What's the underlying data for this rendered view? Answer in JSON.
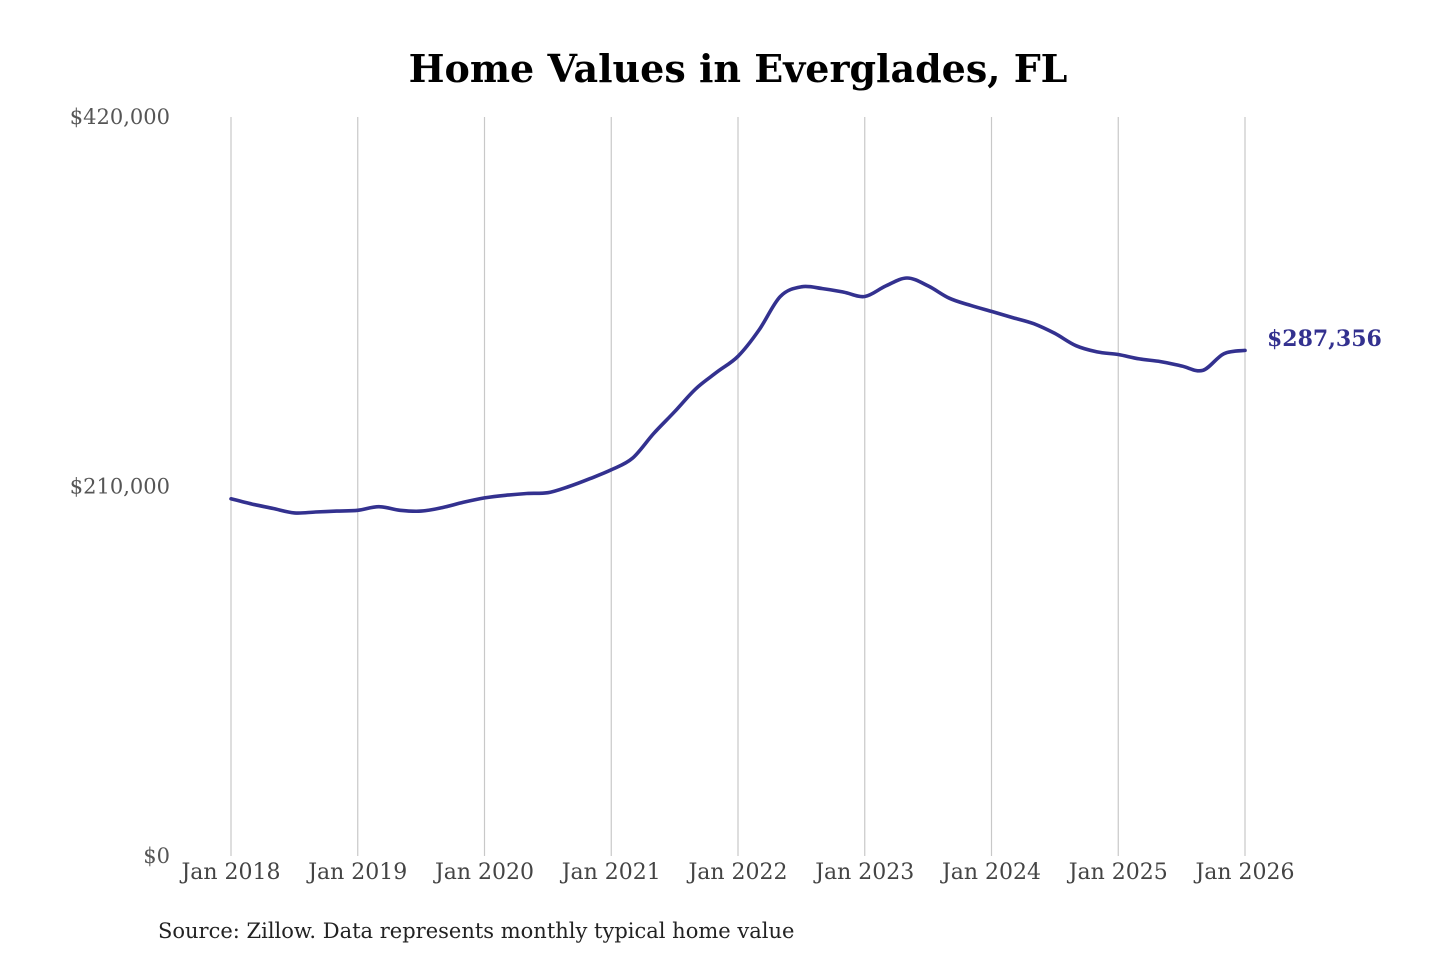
{
  "chart_data": {
    "type": "line",
    "title": "Home Values in Everglades, FL",
    "source_note": "Source: Zillow. Data represents monthly typical home value",
    "xlabel": "",
    "ylabel": "",
    "ylim": [
      0,
      420000
    ],
    "yticks": [
      0,
      210000,
      420000
    ],
    "ytick_labels": [
      "$0",
      "$210,000",
      "$420,000"
    ],
    "xtick_labels": [
      "Jan 2018",
      "Jan 2019",
      "Jan 2020",
      "Jan 2021",
      "Jan 2022",
      "Jan 2023",
      "Jan 2024",
      "Jan 2025",
      "Jan 2026"
    ],
    "xtick_dates": [
      "2018-01",
      "2019-01",
      "2020-01",
      "2021-01",
      "2022-01",
      "2023-01",
      "2024-01",
      "2025-01",
      "2026-01"
    ],
    "grid": "vertical",
    "line_color": "#33318f",
    "end_label": "$287,356",
    "series": [
      {
        "x": [
          "2018-01",
          "2018-03",
          "2018-05",
          "2018-07",
          "2018-09",
          "2018-11",
          "2019-01",
          "2019-03",
          "2019-05",
          "2019-07",
          "2019-09",
          "2019-11",
          "2020-01",
          "2020-03",
          "2020-05",
          "2020-07",
          "2020-09",
          "2020-11",
          "2021-01",
          "2021-03",
          "2021-05",
          "2021-07",
          "2021-09",
          "2021-11",
          "2022-01",
          "2022-03",
          "2022-05",
          "2022-07",
          "2022-09",
          "2022-11",
          "2023-01",
          "2023-03",
          "2023-05",
          "2023-07",
          "2023-09",
          "2023-11",
          "2024-01",
          "2024-03",
          "2024-05",
          "2024-07",
          "2024-09",
          "2024-11",
          "2025-01",
          "2025-03",
          "2025-05",
          "2025-07",
          "2025-09",
          "2025-11",
          "2026-01"
        ],
        "values": [
          203000,
          200000,
          197500,
          195000,
          195500,
          196000,
          196500,
          198500,
          196500,
          196000,
          198000,
          201000,
          203500,
          205000,
          206000,
          206500,
          210000,
          214500,
          219500,
          226000,
          240000,
          252500,
          265500,
          275000,
          284000,
          299000,
          318000,
          323500,
          322500,
          320500,
          318000,
          324000,
          328500,
          324000,
          317000,
          313000,
          309500,
          306000,
          302500,
          297000,
          290000,
          286500,
          285000,
          282500,
          281000,
          278500,
          276000,
          285500,
          287356
        ]
      }
    ]
  }
}
